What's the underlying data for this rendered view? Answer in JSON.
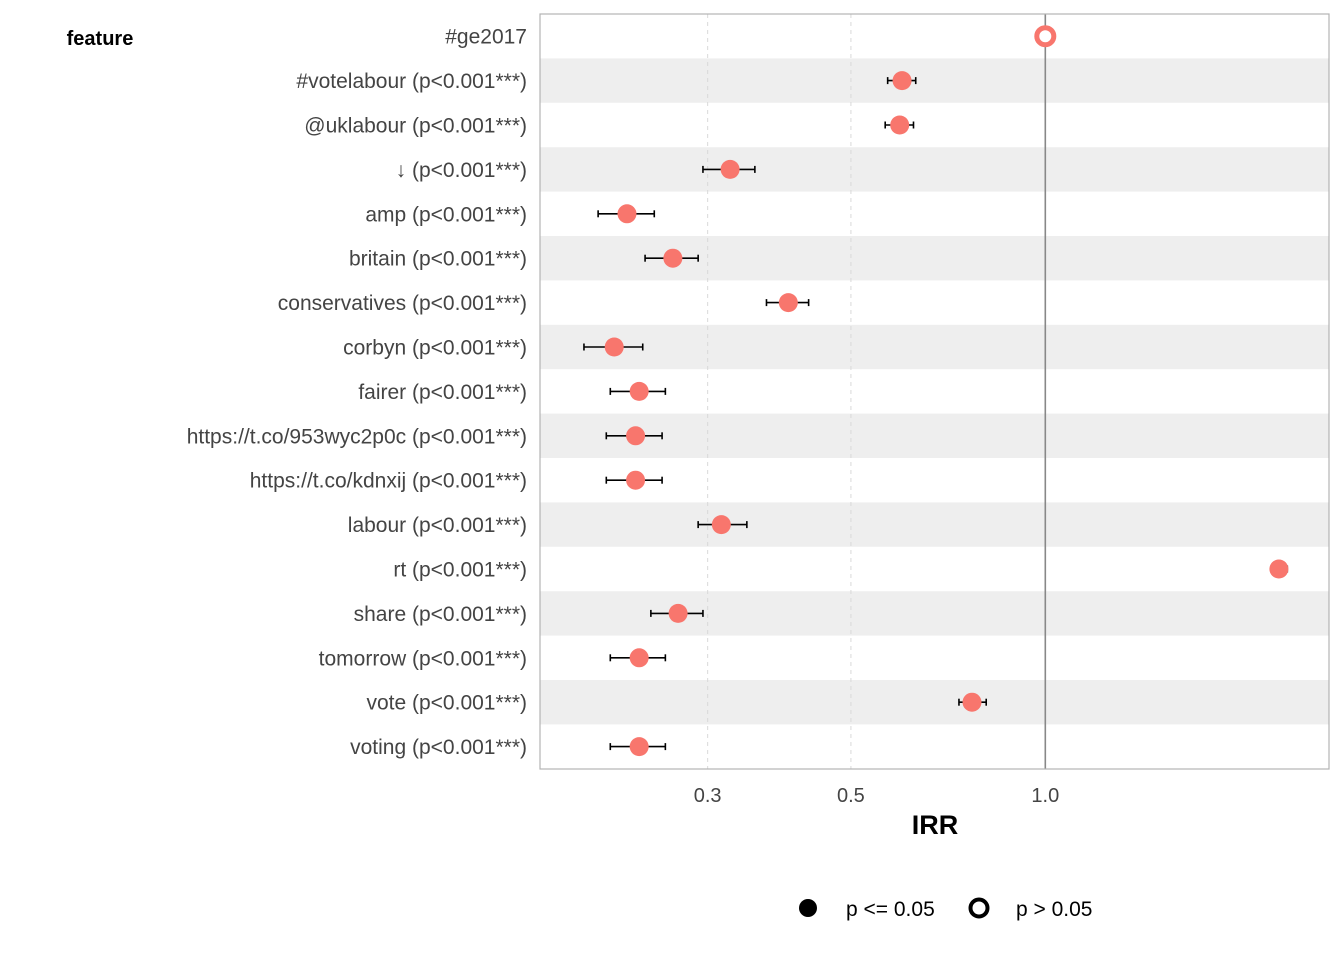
{
  "chart_data": {
    "type": "scatter",
    "subtype": "forest-plot",
    "column_header": "feature",
    "xlabel": "IRR",
    "x_scale": "log",
    "xlim": [
      0.165,
      2.75
    ],
    "x_ticks": [
      {
        "value": 0.3,
        "label": "0.3"
      },
      {
        "value": 0.5,
        "label": "0.5"
      },
      {
        "value": 1.0,
        "label": "1.0"
      }
    ],
    "reference_line": 1.0,
    "grid": "vertical dashed at ticks",
    "row_banding": true,
    "point_color": "#f8766d",
    "rows": [
      {
        "label": "#ge2017",
        "irr": 1.0,
        "lo": 1.0,
        "hi": 1.0,
        "significant": false
      },
      {
        "label": "#votelabour (p<0.001***)",
        "irr": 0.6,
        "lo": 0.57,
        "hi": 0.63,
        "significant": true
      },
      {
        "label": "@uklabour (p<0.001***)",
        "irr": 0.595,
        "lo": 0.565,
        "hi": 0.625,
        "significant": true
      },
      {
        "label": "↓ (p<0.001***)",
        "irr": 0.325,
        "lo": 0.295,
        "hi": 0.355,
        "significant": true
      },
      {
        "label": "amp (p<0.001***)",
        "irr": 0.225,
        "lo": 0.203,
        "hi": 0.248,
        "significant": true
      },
      {
        "label": "britain (p<0.001***)",
        "irr": 0.265,
        "lo": 0.24,
        "hi": 0.29,
        "significant": true
      },
      {
        "label": "conservatives (p<0.001***)",
        "irr": 0.4,
        "lo": 0.37,
        "hi": 0.43,
        "significant": true
      },
      {
        "label": "corbyn (p<0.001***)",
        "irr": 0.215,
        "lo": 0.193,
        "hi": 0.238,
        "significant": true
      },
      {
        "label": "fairer (p<0.001***)",
        "irr": 0.235,
        "lo": 0.212,
        "hi": 0.258,
        "significant": true
      },
      {
        "label": "https://t.co/953wyc2p0c (p<0.001***)",
        "irr": 0.232,
        "lo": 0.209,
        "hi": 0.255,
        "significant": true
      },
      {
        "label": "https://t.co/kdnxij (p<0.001***)",
        "irr": 0.232,
        "lo": 0.209,
        "hi": 0.255,
        "significant": true
      },
      {
        "label": "labour (p<0.001***)",
        "irr": 0.315,
        "lo": 0.29,
        "hi": 0.345,
        "significant": true
      },
      {
        "label": "rt (p<0.001***)",
        "irr": 2.3,
        "lo": 2.24,
        "hi": 2.37,
        "significant": true
      },
      {
        "label": "share (p<0.001***)",
        "irr": 0.27,
        "lo": 0.245,
        "hi": 0.295,
        "significant": true
      },
      {
        "label": "tomorrow (p<0.001***)",
        "irr": 0.235,
        "lo": 0.212,
        "hi": 0.258,
        "significant": true
      },
      {
        "label": "vote (p<0.001***)",
        "irr": 0.77,
        "lo": 0.735,
        "hi": 0.81,
        "significant": true
      },
      {
        "label": "voting (p<0.001***)",
        "irr": 0.235,
        "lo": 0.212,
        "hi": 0.258,
        "significant": true
      }
    ],
    "legend": {
      "position": "bottom",
      "items": [
        {
          "label": "p <= 0.05",
          "marker": "filled-circle"
        },
        {
          "label": "p > 0.05",
          "marker": "open-circle"
        }
      ]
    }
  }
}
